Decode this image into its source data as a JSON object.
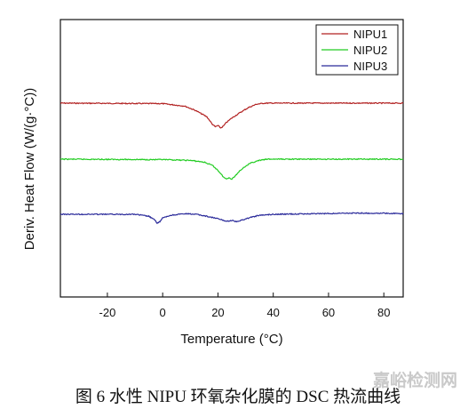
{
  "chart_data": {
    "type": "line",
    "xlabel": "Temperature (°C)",
    "ylabel": "Deriv. Heat Flow (W/(g·°C))",
    "xlim": [
      -37,
      87
    ],
    "x_ticks": [
      -20,
      0,
      20,
      40,
      60,
      80
    ],
    "y_ticks_shown": false,
    "grid": false,
    "legend_position": "top-right",
    "colors": {
      "NIPU1": "#b22222",
      "NIPU2": "#22cc22",
      "NIPU3": "#2a2a9a"
    },
    "series": [
      {
        "name": "NIPU1",
        "x": [
          -37,
          0,
          8,
          12,
          16,
          18,
          19,
          20,
          21,
          22,
          23,
          25,
          28,
          31,
          34,
          37,
          45,
          60,
          75,
          87
        ],
        "y": [
          0.0,
          -0.02,
          -0.12,
          -0.3,
          -0.55,
          -0.85,
          -0.95,
          -0.9,
          -1.0,
          -0.92,
          -0.78,
          -0.6,
          -0.38,
          -0.18,
          -0.04,
          0.0,
          0.0,
          0.0,
          0.0,
          0.0
        ]
      },
      {
        "name": "NIPU2",
        "x": [
          -37,
          0,
          10,
          15,
          18,
          20,
          22,
          23,
          24,
          25,
          26,
          27,
          28,
          30,
          32,
          35,
          38,
          45,
          60,
          75,
          87
        ],
        "y": [
          0.0,
          -0.02,
          -0.05,
          -0.12,
          -0.25,
          -0.45,
          -0.72,
          -0.8,
          -0.74,
          -0.8,
          -0.7,
          -0.58,
          -0.45,
          -0.28,
          -0.15,
          -0.05,
          0.0,
          0.0,
          0.0,
          0.0,
          0.0
        ]
      },
      {
        "name": "NIPU3",
        "x": [
          -37,
          -10,
          -5,
          -3,
          -2,
          -1,
          0,
          3,
          6,
          9,
          12,
          16,
          20,
          23,
          25,
          27,
          29,
          32,
          35,
          40,
          60,
          70,
          87
        ],
        "y": [
          0.0,
          0.0,
          -0.08,
          -0.22,
          -0.35,
          -0.3,
          -0.15,
          -0.04,
          0.0,
          0.02,
          0.0,
          -0.08,
          -0.18,
          -0.28,
          -0.25,
          -0.3,
          -0.22,
          -0.12,
          -0.04,
          0.0,
          0.03,
          0.05,
          0.03
        ]
      }
    ]
  },
  "legend": {
    "items": [
      "NIPU1",
      "NIPU2",
      "NIPU3"
    ]
  },
  "caption": "图 6  水性 NIPU 环氧杂化膜的 DSC 热流曲线",
  "watermark": "嘉峪检测网"
}
